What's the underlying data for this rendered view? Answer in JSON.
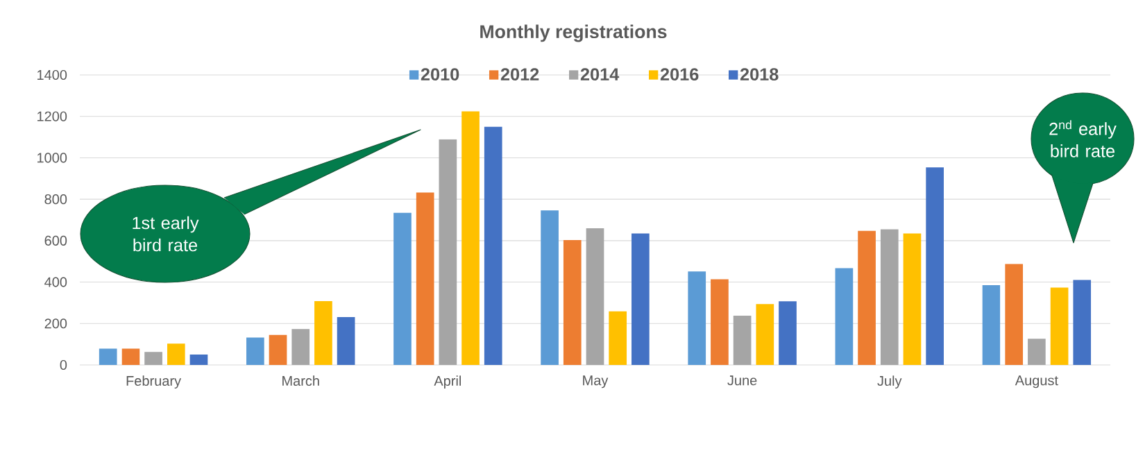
{
  "chart_data": {
    "type": "bar",
    "title": "Monthly registrations",
    "categories": [
      "February",
      "March",
      "April",
      "May",
      "June",
      "July",
      "August"
    ],
    "series": [
      {
        "name": "2010",
        "color": "#5b9bd5",
        "values": [
          79,
          132,
          734,
          746,
          451,
          467,
          385
        ]
      },
      {
        "name": "2012",
        "color": "#ed7d31",
        "values": [
          79,
          145,
          832,
          603,
          414,
          647,
          487
        ]
      },
      {
        "name": "2014",
        "color": "#a5a5a5",
        "values": [
          63,
          173,
          1089,
          660,
          238,
          655,
          126
        ]
      },
      {
        "name": "2016",
        "color": "#ffc000",
        "values": [
          103,
          308,
          1224,
          259,
          294,
          635,
          373
        ]
      },
      {
        "name": "2018",
        "color": "#4472c4",
        "values": [
          50,
          231,
          1150,
          635,
          307,
          954,
          410
        ]
      }
    ],
    "ylim": [
      0,
      1400
    ],
    "yticks": [
      0,
      200,
      400,
      600,
      800,
      1000,
      1200,
      1400
    ],
    "grid": "y",
    "legend": "top",
    "annotations": [
      "1st early bird rate",
      "2$^{nd}$ early bird rate"
    ]
  }
}
